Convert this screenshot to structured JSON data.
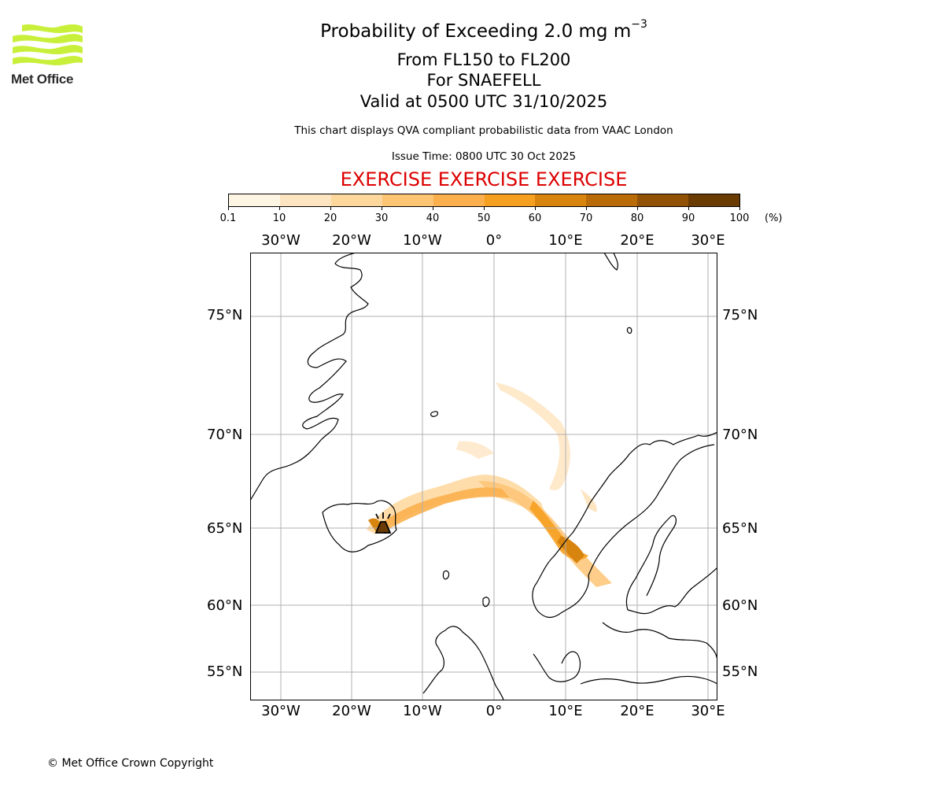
{
  "logo": {
    "text": "Met Office",
    "icon": "met-office-wave-logo",
    "color": "#c8f03a"
  },
  "title": {
    "line1_main": "Probability of Exceeding 2.0 mg m",
    "line1_sup": "−3",
    "line2": "From FL150 to FL200",
    "line3": "For SNAEFELL",
    "line4": "Valid at 0500 UTC 31/10/2025",
    "description": "This chart displays QVA compliant probabilistic data from VAAC London",
    "issue_time": "Issue Time: 0800 UTC 30 Oct 2025",
    "exercise": "EXERCISE EXERCISE EXERCISE",
    "exercise_color": "#dd0000"
  },
  "colorbar": {
    "ticks": [
      "0.1",
      "10",
      "20",
      "30",
      "40",
      "50",
      "60",
      "70",
      "80",
      "90",
      "100"
    ],
    "unit": "(%)",
    "colors": [
      "#fff5e3",
      "#fee5c2",
      "#fed79c",
      "#fdc474",
      "#fbb04d",
      "#f6a021",
      "#d88510",
      "#b86b07",
      "#925205",
      "#6a3c04"
    ]
  },
  "map": {
    "projection": "polar-stereographic",
    "lon_labels": [
      "30°W",
      "20°W",
      "10°W",
      "0°",
      "10°E",
      "20°E",
      "30°E"
    ],
    "lat_labels": [
      "75°N",
      "70°N",
      "65°N",
      "60°N",
      "55°N"
    ],
    "volcano": "SNAEFELL",
    "gridline_color": "#b0b0b0"
  },
  "copyright": "© Met Office Crown Copyright"
}
